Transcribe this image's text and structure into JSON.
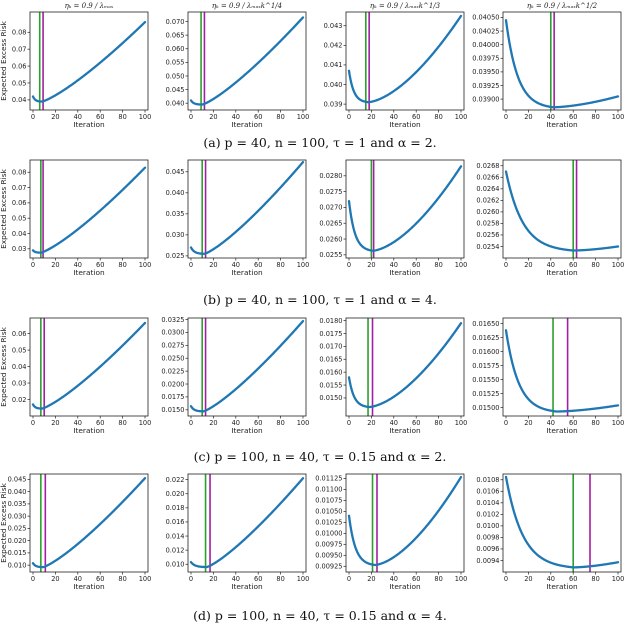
{
  "column_titles": [
    "ηₖ = 0.9 / λₘₐₓ",
    "ηₖ = 0.9 / λₘₐₓk^1/4",
    "ηₖ = 0.9 / λₘₐₓk^1/3",
    "ηₖ = 0.9 / λₘₐₓk^1/2"
  ],
  "chart_data": [
    {
      "row": 0,
      "caption": "(a) p = 40, n = 100, τ = 1 and α = 2.",
      "ylabel": "Expected Excess Risk",
      "xlabel": "Iteration",
      "panels": [
        {
          "type": "line",
          "x": [
            0,
            8,
            100
          ],
          "start": 0.042,
          "min": 0.039,
          "end": 0.086,
          "xmin": 8,
          "green": 6,
          "purple": 9,
          "ylim": [
            0.034,
            0.092
          ],
          "yticks": [
            0.04,
            0.05,
            0.06,
            0.07,
            0.08
          ],
          "ytick_labels": [
            "0.04",
            "0.05",
            "0.06",
            "0.07",
            "0.08"
          ],
          "xticks": [
            0,
            20,
            40,
            60,
            80,
            100
          ]
        },
        {
          "type": "line",
          "x": [
            0,
            10,
            100
          ],
          "start": 0.041,
          "min": 0.0395,
          "end": 0.0715,
          "xmin": 10,
          "green": 9,
          "purple": 12,
          "ylim": [
            0.0375,
            0.0735
          ],
          "yticks": [
            0.04,
            0.045,
            0.05,
            0.055,
            0.06,
            0.065,
            0.07
          ],
          "ytick_labels": [
            "0.040",
            "0.045",
            "0.050",
            "0.055",
            "0.060",
            "0.065",
            "0.070"
          ],
          "xticks": [
            0,
            20,
            40,
            60,
            80,
            100
          ]
        },
        {
          "type": "line",
          "x": [
            0,
            17,
            100
          ],
          "start": 0.0407,
          "min": 0.0391,
          "end": 0.0435,
          "xmin": 17,
          "green": 15,
          "purple": 18,
          "ylim": [
            0.0387,
            0.0437
          ],
          "yticks": [
            0.039,
            0.04,
            0.041,
            0.042,
            0.043
          ],
          "ytick_labels": [
            "0.039",
            "0.040",
            "0.041",
            "0.042",
            "0.043"
          ],
          "xticks": [
            0,
            20,
            40,
            60,
            80,
            100
          ]
        },
        {
          "type": "line",
          "x": [
            0,
            42,
            100
          ],
          "start": 0.04045,
          "min": 0.03885,
          "end": 0.03905,
          "xmin": 42,
          "green": 40,
          "purple": 43,
          "ylim": [
            0.0388,
            0.0406
          ],
          "yticks": [
            0.039,
            0.0395,
            0.04,
            0.0405
          ],
          "ytick_labels": [
            "0.03900",
            "0.03925",
            "0.03950",
            "0.03975",
            "0.04000",
            "0.04025",
            "0.04050"
          ],
          "ytick_values": [
            0.039,
            0.03925,
            0.0395,
            0.03975,
            0.04,
            0.04025,
            0.0405
          ],
          "xticks": [
            0,
            20,
            40,
            60,
            80,
            100
          ]
        }
      ]
    },
    {
      "row": 1,
      "caption": "(b) p = 40, n = 100, τ = 1 and α = 4.",
      "ylabel": "Expected Excess Risk",
      "xlabel": "Iteration",
      "panels": [
        {
          "type": "line",
          "x": [
            0,
            7,
            100
          ],
          "start": 0.029,
          "min": 0.0275,
          "end": 0.083,
          "xmin": 7,
          "green": 7,
          "purple": 9,
          "ylim": [
            0.024,
            0.088
          ],
          "yticks": [
            0.03,
            0.04,
            0.05,
            0.06,
            0.07,
            0.08
          ],
          "ytick_labels": [
            "0.03",
            "0.04",
            "0.05",
            "0.06",
            "0.07",
            "0.08"
          ],
          "xticks": [
            0,
            20,
            40,
            60,
            80,
            100
          ]
        },
        {
          "type": "line",
          "x": [
            0,
            12,
            100
          ],
          "start": 0.027,
          "min": 0.0255,
          "end": 0.0473,
          "xmin": 12,
          "green": 10,
          "purple": 13,
          "ylim": [
            0.0245,
            0.0478
          ],
          "yticks": [
            0.025,
            0.03,
            0.035,
            0.04,
            0.045
          ],
          "ytick_labels": [
            "0.025",
            "0.030",
            "0.035",
            "0.040",
            "0.045"
          ],
          "xticks": [
            0,
            20,
            40,
            60,
            80,
            100
          ]
        },
        {
          "type": "line",
          "x": [
            0,
            21,
            100
          ],
          "start": 0.0272,
          "min": 0.02563,
          "end": 0.0283,
          "xmin": 21,
          "green": 20,
          "purple": 22,
          "ylim": [
            0.0254,
            0.0285
          ],
          "yticks": [
            0.0255,
            0.026,
            0.0265,
            0.027,
            0.0275,
            0.028
          ],
          "ytick_labels": [
            "0.0255",
            "0.0260",
            "0.0265",
            "0.0270",
            "0.0275",
            "0.0280"
          ],
          "xticks": [
            0,
            20,
            40,
            60,
            80,
            100
          ]
        },
        {
          "type": "line",
          "x": [
            0,
            60,
            100
          ],
          "start": 0.0267,
          "min": 0.02533,
          "end": 0.0254,
          "xmin": 60,
          "green": 60,
          "purple": 63,
          "ylim": [
            0.0252,
            0.0269
          ],
          "yticks": [
            0.0254,
            0.0256,
            0.0258,
            0.026,
            0.0262,
            0.0264,
            0.0266,
            0.0268
          ],
          "ytick_labels": [
            "0.0254",
            "0.0256",
            "0.0258",
            "0.0260",
            "0.0262",
            "0.0264",
            "0.0266",
            "0.0268"
          ],
          "xticks": [
            0,
            20,
            40,
            60,
            80,
            100
          ]
        }
      ]
    },
    {
      "row": 2,
      "caption": "(c) p = 100, n = 40, τ = 0.15 and α = 2.",
      "ylabel": "Expected Excess Risk",
      "xlabel": "Iteration",
      "panels": [
        {
          "type": "line",
          "x": [
            0,
            8,
            100
          ],
          "start": 0.017,
          "min": 0.0145,
          "end": 0.0665,
          "xmin": 8,
          "green": 7,
          "purple": 10,
          "ylim": [
            0.01,
            0.0695
          ],
          "yticks": [
            0.02,
            0.03,
            0.04,
            0.05,
            0.06
          ],
          "ytick_labels": [
            "0.02",
            "0.03",
            "0.04",
            "0.05",
            "0.06"
          ],
          "xticks": [
            0,
            20,
            40,
            60,
            80,
            100
          ]
        },
        {
          "type": "line",
          "x": [
            0,
            11,
            100
          ],
          "start": 0.0157,
          "min": 0.0147,
          "end": 0.0322,
          "xmin": 11,
          "green": 10,
          "purple": 13,
          "ylim": [
            0.0138,
            0.0328
          ],
          "yticks": [
            0.015,
            0.0175,
            0.02,
            0.0225,
            0.025,
            0.0275,
            0.03,
            0.0325
          ],
          "ytick_labels": [
            "0.0150",
            "0.0175",
            "0.0200",
            "0.0225",
            "0.0250",
            "0.0275",
            "0.0300",
            "0.0325"
          ],
          "xticks": [
            0,
            20,
            40,
            60,
            80,
            100
          ]
        },
        {
          "type": "line",
          "x": [
            0,
            18,
            100
          ],
          "start": 0.0158,
          "min": 0.01465,
          "end": 0.0179,
          "xmin": 18,
          "green": 17,
          "purple": 21,
          "ylim": [
            0.0143,
            0.0181
          ],
          "yticks": [
            0.015,
            0.0155,
            0.016,
            0.0165,
            0.017,
            0.0175,
            0.018
          ],
          "ytick_labels": [
            "0.0150",
            "0.0155",
            "0.0160",
            "0.0165",
            "0.0170",
            "0.0175",
            "0.0180"
          ],
          "xticks": [
            0,
            20,
            40,
            60,
            80,
            100
          ]
        },
        {
          "type": "line",
          "x": [
            0,
            45,
            100
          ],
          "start": 0.01638,
          "min": 0.01493,
          "end": 0.01504,
          "xmin": 45,
          "green": 42,
          "purple": 55,
          "ylim": [
            0.01485,
            0.0166
          ],
          "yticks": [
            0.015,
            0.0155,
            0.016,
            0.0165
          ],
          "ytick_labels": [
            "0.01500",
            "0.01525",
            "0.01550",
            "0.01575",
            "0.01600",
            "0.01625",
            "0.01650"
          ],
          "ytick_values": [
            0.015,
            0.01525,
            0.0155,
            0.01575,
            0.016,
            0.01625,
            0.0165
          ],
          "xticks": [
            0,
            20,
            40,
            60,
            80,
            100
          ]
        }
      ]
    },
    {
      "row": 3,
      "caption": "(d) p = 100, n = 40, τ = 0.15 and α = 4.",
      "ylabel": "Expected Excess Risk",
      "xlabel": "Iteration",
      "panels": [
        {
          "type": "line",
          "x": [
            0,
            9,
            100
          ],
          "start": 0.0108,
          "min": 0.0092,
          "end": 0.0455,
          "xmin": 9,
          "green": 7,
          "purple": 11,
          "ylim": [
            0.0072,
            0.0472
          ],
          "yticks": [
            0.01,
            0.015,
            0.02,
            0.025,
            0.03,
            0.035,
            0.04,
            0.045
          ],
          "ytick_labels": [
            "0.010",
            "0.015",
            "0.020",
            "0.025",
            "0.030",
            "0.035",
            "0.040",
            "0.045"
          ],
          "xticks": [
            0,
            20,
            40,
            60,
            80,
            100
          ]
        },
        {
          "type": "line",
          "x": [
            0,
            14,
            100
          ],
          "start": 0.0103,
          "min": 0.0096,
          "end": 0.0222,
          "xmin": 14,
          "green": 13,
          "purple": 17,
          "ylim": [
            0.0089,
            0.0228
          ],
          "yticks": [
            0.01,
            0.012,
            0.014,
            0.016,
            0.018,
            0.02,
            0.022
          ],
          "ytick_labels": [
            "0.010",
            "0.012",
            "0.014",
            "0.016",
            "0.018",
            "0.020",
            "0.022"
          ],
          "xticks": [
            0,
            20,
            40,
            60,
            80,
            100
          ]
        },
        {
          "type": "line",
          "x": [
            0,
            23,
            100
          ],
          "start": 0.0104,
          "min": 0.00928,
          "end": 0.01128,
          "xmin": 23,
          "green": 21,
          "purple": 25,
          "ylim": [
            0.00912,
            0.01135
          ],
          "yticks": [
            0.00925,
            0.0095,
            0.00975,
            0.01,
            0.01025,
            0.0105,
            0.01075,
            0.011,
            0.01125
          ],
          "ytick_labels": [
            "0.00925",
            "0.00950",
            "0.00975",
            "0.01000",
            "0.01025",
            "0.01050",
            "0.01075",
            "0.01100",
            "0.01125"
          ],
          "xticks": [
            0,
            20,
            40,
            60,
            80,
            100
          ]
        },
        {
          "type": "line",
          "x": [
            0,
            60,
            100
          ],
          "start": 0.01085,
          "min": 0.00928,
          "end": 0.00937,
          "xmin": 60,
          "green": 60,
          "purple": 75,
          "ylim": [
            0.0092,
            0.0109
          ],
          "yticks": [
            0.0094,
            0.0096,
            0.0098,
            0.01,
            0.0102,
            0.0104,
            0.0106,
            0.0108
          ],
          "ytick_labels": [
            "0.0094",
            "0.0096",
            "0.0098",
            "0.0100",
            "0.0102",
            "0.0104",
            "0.0106",
            "0.0108"
          ],
          "xticks": [
            0,
            20,
            40,
            60,
            80,
            100
          ]
        }
      ]
    }
  ]
}
